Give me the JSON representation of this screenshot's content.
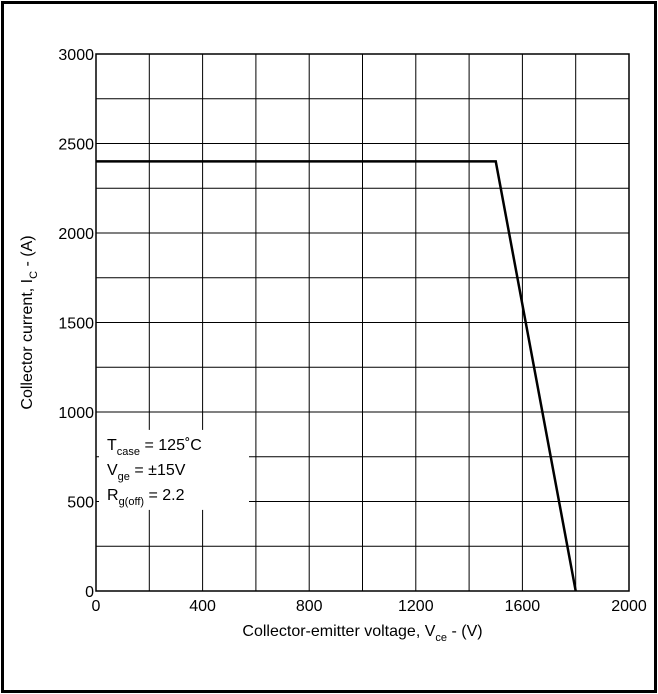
{
  "chart_data": {
    "type": "line",
    "xlabel": {
      "main": "Collector-emitter voltage, V",
      "sub": "ce",
      "suffix": " - (V)"
    },
    "ylabel": {
      "main": "Collector current, I",
      "sub": "C",
      "suffix": " - (A)"
    },
    "xlim": [
      0,
      2000
    ],
    "ylim": [
      0,
      3000
    ],
    "x_ticks": [
      0,
      400,
      800,
      1200,
      1600,
      2000
    ],
    "y_ticks": [
      0,
      500,
      1000,
      1500,
      2000,
      2500,
      3000
    ],
    "x_tick_labels": [
      "0",
      "400",
      "800",
      "1200",
      "1600",
      "2000"
    ],
    "y_tick_labels": [
      "0",
      "500",
      "1000",
      "1500",
      "2000",
      "2500",
      "3000"
    ],
    "grid": true,
    "series": [
      {
        "x": [
          0,
          1500,
          1800
        ],
        "y": [
          2400,
          2400,
          0
        ],
        "color": "#000000"
      }
    ],
    "legend_box": {
      "position": "bottom-left",
      "lines": [
        {
          "main": "T",
          "sub": "case",
          "rest": " = 125˚C"
        },
        {
          "main": "V",
          "sub": "ge",
          "rest": " = ±15V"
        },
        {
          "main": "R",
          "sub": "g(off)",
          "rest": " = 2.2"
        }
      ]
    }
  }
}
